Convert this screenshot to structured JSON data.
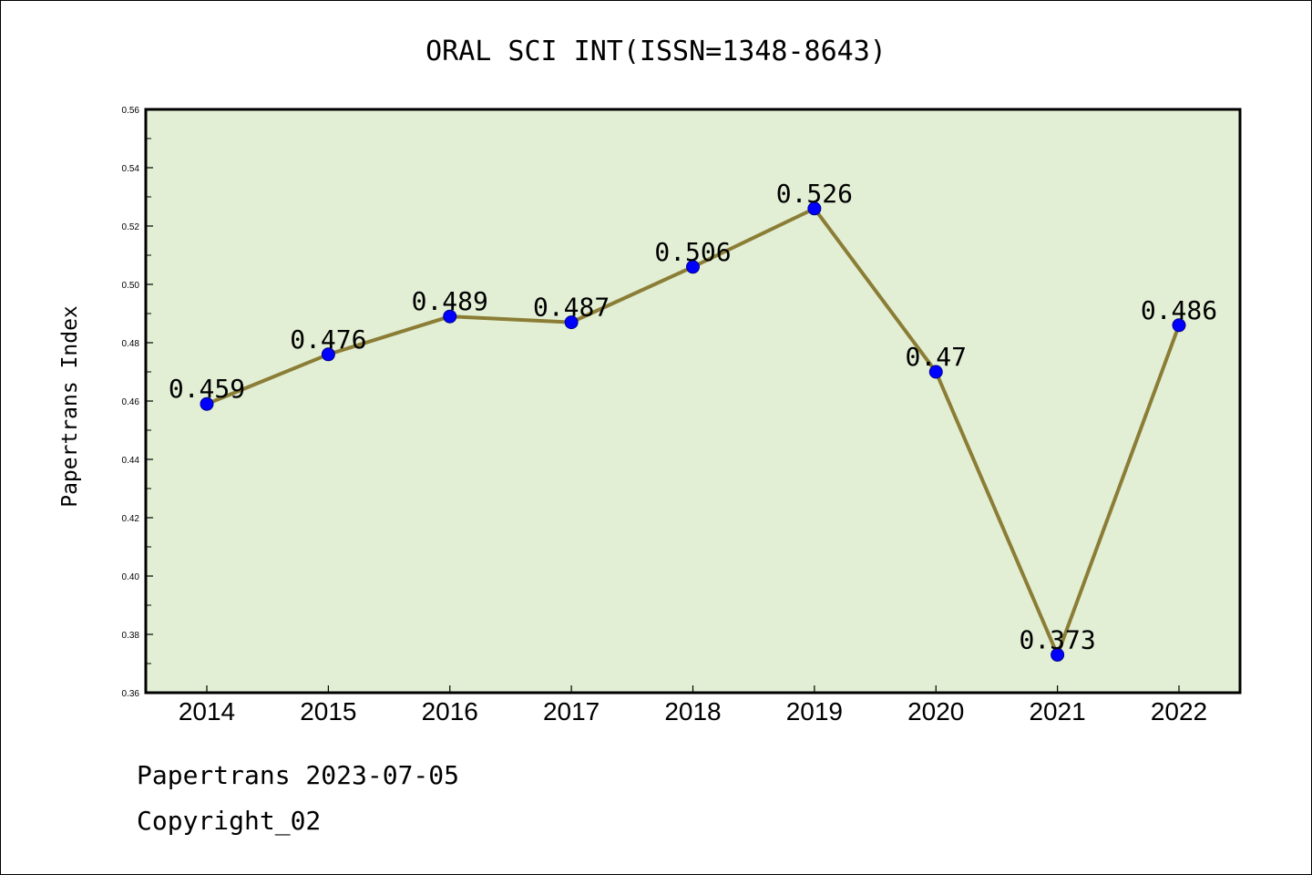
{
  "chart_data": {
    "type": "line",
    "title": "ORAL SCI INT(ISSN=1348-8643)",
    "xlabel": "",
    "ylabel": "Papertrans Index",
    "categories": [
      "2014",
      "2015",
      "2016",
      "2017",
      "2018",
      "2019",
      "2020",
      "2021",
      "2022"
    ],
    "series": [
      {
        "values": [
          0.459,
          0.476,
          0.489,
          0.487,
          0.506,
          0.526,
          0.47,
          0.373,
          0.486
        ]
      }
    ],
    "data_labels": [
      "0.459",
      "0.476",
      "0.489",
      "0.487",
      "0.506",
      "0.526",
      "0.47",
      "0.373",
      "0.486"
    ],
    "ylim": [
      0.36,
      0.56
    ],
    "yticks": [
      "0.36",
      "0.38",
      "0.40",
      "0.42",
      "0.44",
      "0.46",
      "0.48",
      "0.50",
      "0.52",
      "0.54",
      "0.56"
    ],
    "grid": false,
    "legend": "none",
    "colors": {
      "plot_background": "#e2efd5",
      "line": "#8b7d35",
      "marker": "#0000ff"
    }
  },
  "footer": {
    "line1": "Papertrans 2023-07-05",
    "line2": "Copyright_02"
  }
}
